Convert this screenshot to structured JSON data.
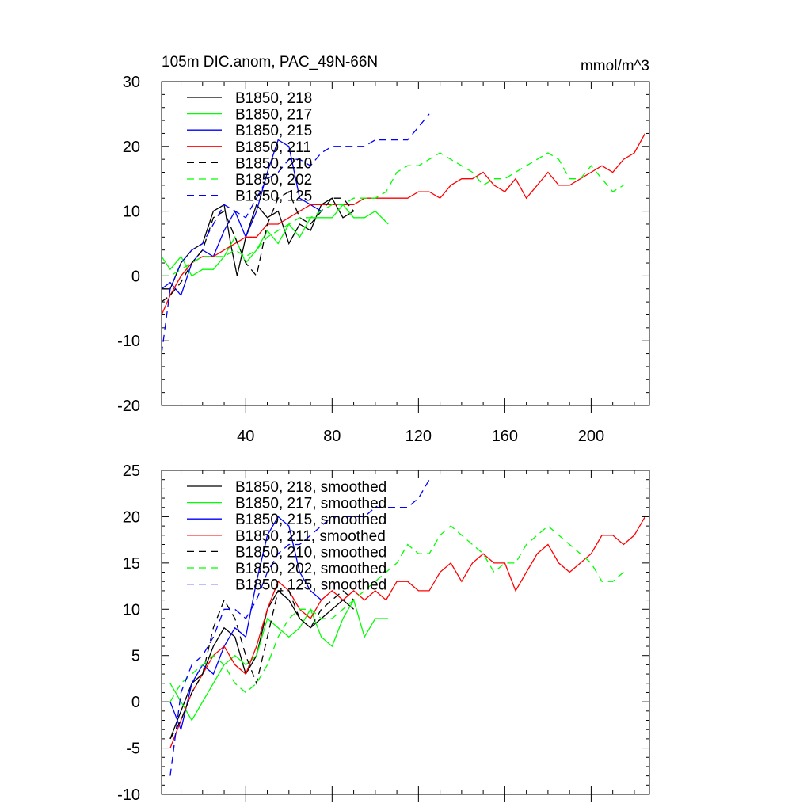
{
  "chart_data": [
    {
      "type": "line",
      "title": "105m DIC.anom, PAC_49N-66N",
      "units": "mmol/m^3",
      "xlim": [
        1,
        227
      ],
      "ylim": [
        -20,
        30
      ],
      "xticks": [
        40,
        80,
        120,
        160,
        200
      ],
      "yticks": [
        -20,
        -10,
        0,
        10,
        20,
        30
      ],
      "legend_position": "top-left",
      "grid": false,
      "series": [
        {
          "name": "B1850, 218",
          "color": "#000000",
          "dash": "solid",
          "x": [
            1,
            5,
            10,
            15,
            20,
            25,
            30,
            33,
            36,
            40,
            45,
            50,
            55,
            60,
            65,
            70,
            75,
            80,
            85,
            90
          ],
          "y": [
            -2,
            -2,
            2,
            4,
            5,
            10,
            11,
            5,
            0,
            6,
            11,
            9,
            10,
            5,
            8,
            7,
            11,
            12,
            9,
            10
          ]
        },
        {
          "name": "B1850, 217",
          "color": "#00ff00",
          "dash": "solid",
          "x": [
            1,
            5,
            10,
            15,
            20,
            25,
            30,
            35,
            40,
            45,
            50,
            55,
            60,
            65,
            70,
            75,
            80,
            85,
            90,
            95,
            100,
            106
          ],
          "y": [
            3,
            1,
            3,
            0,
            1,
            1,
            3,
            6,
            2,
            4,
            7,
            5,
            8,
            6,
            9,
            9,
            9,
            11,
            9,
            9,
            10,
            8
          ]
        },
        {
          "name": "B1850, 215",
          "color": "#0000ff",
          "dash": "solid",
          "x": [
            1,
            5,
            10,
            15,
            20,
            25,
            30,
            35,
            40,
            45,
            50,
            55,
            60,
            65,
            70,
            75
          ],
          "y": [
            -2,
            -1,
            -3,
            2,
            4,
            3,
            7,
            10,
            6,
            10,
            16,
            21,
            20,
            12,
            11,
            10
          ]
        },
        {
          "name": "B1850, 211",
          "color": "#ff0000",
          "dash": "solid",
          "x": [
            1,
            5,
            10,
            15,
            20,
            25,
            30,
            35,
            40,
            45,
            50,
            55,
            60,
            65,
            70,
            75,
            80,
            85,
            90,
            95,
            100,
            105,
            110,
            115,
            120,
            125,
            130,
            135,
            140,
            145,
            150,
            155,
            160,
            165,
            170,
            175,
            180,
            185,
            190,
            195,
            200,
            205,
            210,
            215,
            220,
            225
          ],
          "y": [
            -6,
            -3,
            0,
            2,
            3,
            3,
            4,
            5,
            6,
            6,
            8,
            8,
            9,
            10,
            11,
            11,
            11,
            11,
            11,
            12,
            12,
            12,
            12,
            12,
            13,
            13,
            12,
            14,
            15,
            15,
            16,
            14,
            13,
            15,
            12,
            14,
            16,
            14,
            14,
            15,
            16,
            17,
            16,
            18,
            19,
            22
          ]
        },
        {
          "name": "B1850, 210",
          "color": "#000000",
          "dash": "dashed",
          "x": [
            1,
            5,
            10,
            15,
            20,
            25,
            30,
            35,
            40,
            45,
            50,
            55,
            60,
            65,
            70,
            75,
            80,
            85,
            90
          ],
          "y": [
            -4,
            -3,
            -1,
            2,
            4,
            9,
            10,
            6,
            2,
            0,
            8,
            12,
            13,
            9,
            8,
            10,
            12,
            12,
            10
          ]
        },
        {
          "name": "B1850, 202",
          "color": "#00ff00",
          "dash": "dashed",
          "x": [
            1,
            5,
            10,
            15,
            20,
            25,
            30,
            35,
            40,
            45,
            50,
            55,
            60,
            65,
            70,
            75,
            80,
            85,
            90,
            95,
            100,
            105,
            110,
            115,
            120,
            125,
            130,
            135,
            140,
            145,
            150,
            155,
            160,
            165,
            170,
            175,
            180,
            185,
            190,
            195,
            200,
            205,
            210,
            215
          ],
          "y": [
            0,
            0,
            1,
            2,
            3,
            3,
            3,
            4,
            3,
            4,
            6,
            7,
            8,
            9,
            9,
            10,
            11,
            11,
            12,
            12,
            12,
            13,
            16,
            17,
            17,
            18,
            19,
            18,
            17,
            16,
            14,
            15,
            15,
            16,
            17,
            18,
            19,
            18,
            15,
            15,
            17,
            15,
            13,
            14
          ]
        },
        {
          "name": "B1850, 125",
          "color": "#0000ff",
          "dash": "dashed",
          "x": [
            1,
            5,
            10,
            15,
            20,
            25,
            30,
            35,
            40,
            45,
            50,
            55,
            60,
            65,
            70,
            75,
            80,
            85,
            90,
            95,
            100,
            105,
            110,
            115,
            120,
            125
          ],
          "y": [
            -12,
            -2,
            2,
            4,
            5,
            8,
            11,
            10,
            9,
            12,
            15,
            16,
            18,
            18,
            17,
            19,
            20,
            20,
            20,
            20,
            21,
            21,
            21,
            21,
            23,
            25
          ]
        }
      ]
    },
    {
      "type": "line",
      "xlim": [
        1,
        227
      ],
      "ylim": [
        -10,
        25
      ],
      "xticks": [
        40,
        80,
        120,
        160,
        200
      ],
      "yticks": [
        -10,
        -5,
        0,
        5,
        10,
        15,
        20,
        25
      ],
      "legend_position": "top-left",
      "grid": false,
      "series": [
        {
          "name": "B1850, 218, smoothed",
          "color": "#000000",
          "dash": "solid",
          "x": [
            5,
            10,
            15,
            20,
            25,
            30,
            35,
            40,
            45,
            50,
            55,
            60,
            65,
            70,
            75,
            80,
            85,
            90
          ],
          "y": [
            -4,
            -1,
            2,
            3,
            6,
            8,
            7,
            3,
            5,
            10,
            12,
            11,
            9,
            8,
            9,
            10,
            11,
            10
          ]
        },
        {
          "name": "B1850, 217, smoothed",
          "color": "#00ff00",
          "dash": "solid",
          "x": [
            5,
            10,
            15,
            20,
            25,
            30,
            35,
            40,
            45,
            50,
            55,
            60,
            65,
            70,
            75,
            80,
            85,
            90,
            95,
            100,
            106
          ],
          "y": [
            2,
            0,
            -2,
            0,
            2,
            4,
            5,
            4,
            5,
            9,
            8,
            7,
            8,
            10,
            7,
            6,
            9,
            11,
            7,
            9,
            9
          ]
        },
        {
          "name": "B1850, 215, smoothed",
          "color": "#0000ff",
          "dash": "solid",
          "x": [
            5,
            10,
            15,
            20,
            25,
            30,
            35,
            40,
            45,
            50,
            55,
            60,
            65,
            70,
            75
          ],
          "y": [
            0,
            -3,
            2,
            4,
            3,
            6,
            8,
            7,
            13,
            18,
            20,
            19,
            14,
            12,
            11
          ]
        },
        {
          "name": "B1850, 211, smoothed",
          "color": "#ff0000",
          "dash": "solid",
          "x": [
            5,
            10,
            15,
            20,
            25,
            30,
            35,
            40,
            45,
            50,
            55,
            60,
            65,
            70,
            75,
            80,
            85,
            90,
            95,
            100,
            105,
            110,
            115,
            120,
            125,
            130,
            135,
            140,
            145,
            150,
            155,
            160,
            165,
            170,
            175,
            180,
            185,
            190,
            195,
            200,
            205,
            210,
            215,
            220,
            225
          ],
          "y": [
            -5,
            -2,
            1,
            3,
            5,
            6,
            4,
            3,
            6,
            10,
            13,
            12,
            10,
            9,
            11,
            12,
            11,
            12,
            11,
            12,
            11,
            13,
            13,
            12,
            12,
            14,
            15,
            13,
            15,
            16,
            15,
            15,
            12,
            14,
            16,
            17,
            15,
            14,
            15,
            16,
            18,
            18,
            17,
            18,
            20
          ]
        },
        {
          "name": "B1850, 210, smoothed",
          "color": "#000000",
          "dash": "dashed",
          "x": [
            5,
            10,
            15,
            20,
            25,
            30,
            35,
            40,
            45,
            50,
            55,
            60,
            65,
            70,
            75,
            80,
            85,
            90
          ],
          "y": [
            -4,
            -2,
            1,
            3,
            8,
            11,
            9,
            5,
            2,
            7,
            12,
            12,
            9,
            8,
            10,
            11,
            12,
            11
          ]
        },
        {
          "name": "B1850, 202, smoothed",
          "color": "#00ff00",
          "dash": "dashed",
          "x": [
            5,
            10,
            15,
            20,
            25,
            30,
            35,
            40,
            45,
            50,
            55,
            60,
            65,
            70,
            75,
            80,
            85,
            90,
            95,
            100,
            105,
            110,
            115,
            120,
            125,
            130,
            135,
            140,
            145,
            150,
            155,
            160,
            165,
            170,
            175,
            180,
            185,
            190,
            195,
            200,
            205,
            210,
            215
          ],
          "y": [
            0,
            2,
            3,
            4,
            5,
            4,
            2,
            1,
            2,
            4,
            7,
            9,
            10,
            10,
            9,
            9,
            10,
            11,
            12,
            13,
            14,
            15,
            17,
            16,
            16,
            18,
            19,
            18,
            17,
            16,
            14,
            15,
            15,
            17,
            18,
            19,
            18,
            17,
            16,
            15,
            13,
            13,
            14
          ]
        },
        {
          "name": "B1850, 125, smoothed",
          "color": "#0000ff",
          "dash": "dashed",
          "x": [
            5,
            10,
            15,
            20,
            25,
            30,
            35,
            40,
            45,
            50,
            55,
            60,
            65,
            70,
            75,
            80,
            85,
            90,
            95,
            100,
            105,
            110,
            115,
            120,
            125
          ],
          "y": [
            -8,
            1,
            4,
            5,
            7,
            10,
            10,
            9,
            11,
            14,
            16,
            17,
            17,
            18,
            19,
            20,
            20,
            20,
            20,
            21,
            21,
            21,
            21,
            22,
            24
          ]
        }
      ]
    }
  ]
}
